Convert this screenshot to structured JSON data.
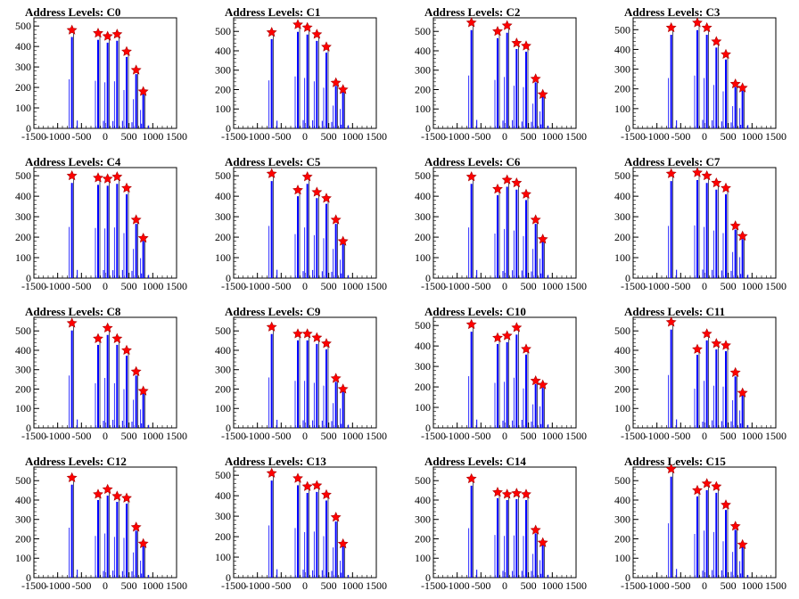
{
  "chart_data": [
    {
      "type": "bar",
      "title": "Address Levels: C0",
      "xlim": [
        -1500,
        1500
      ],
      "ylim": [
        0,
        540
      ],
      "xticks": [
        -1500,
        -1000,
        -500,
        0,
        500,
        1000,
        1500
      ],
      "yticks": [
        0,
        100,
        200,
        300,
        400,
        500
      ],
      "peaks": [
        {
          "x": -700,
          "y": 480
        },
        {
          "x": -150,
          "y": 465
        },
        {
          "x": 50,
          "y": 450
        },
        {
          "x": 250,
          "y": 460
        },
        {
          "x": 450,
          "y": 375
        },
        {
          "x": 650,
          "y": 285
        },
        {
          "x": 800,
          "y": 180
        }
      ]
    },
    {
      "type": "bar",
      "title": "Address Levels: C1",
      "xlim": [
        -1500,
        1500
      ],
      "ylim": [
        0,
        570
      ],
      "xticks": [
        -1500,
        -1000,
        -500,
        0,
        500,
        1000,
        1500
      ],
      "yticks": [
        0,
        100,
        200,
        300,
        400,
        500
      ],
      "peaks": [
        {
          "x": -700,
          "y": 495
        },
        {
          "x": -150,
          "y": 535
        },
        {
          "x": 50,
          "y": 520
        },
        {
          "x": 250,
          "y": 485
        },
        {
          "x": 450,
          "y": 420
        },
        {
          "x": 650,
          "y": 235
        },
        {
          "x": 800,
          "y": 200
        }
      ]
    },
    {
      "type": "bar",
      "title": "Address Levels: C2",
      "xlim": [
        -1500,
        1500
      ],
      "ylim": [
        0,
        570
      ],
      "xticks": [
        -1500,
        -1000,
        -500,
        0,
        500,
        1000,
        1500
      ],
      "yticks": [
        0,
        100,
        200,
        300,
        400,
        500
      ],
      "peaks": [
        {
          "x": -700,
          "y": 545
        },
        {
          "x": -150,
          "y": 500
        },
        {
          "x": 50,
          "y": 530
        },
        {
          "x": 250,
          "y": 440
        },
        {
          "x": 450,
          "y": 425
        },
        {
          "x": 650,
          "y": 255
        },
        {
          "x": 800,
          "y": 175
        }
      ]
    },
    {
      "type": "bar",
      "title": "Address Levels: C3",
      "xlim": [
        -1500,
        1500
      ],
      "ylim": [
        0,
        560
      ],
      "xticks": [
        -1500,
        -1000,
        -500,
        0,
        500,
        1000,
        1500
      ],
      "yticks": [
        0,
        100,
        200,
        300,
        400,
        500
      ],
      "peaks": [
        {
          "x": -700,
          "y": 510
        },
        {
          "x": -150,
          "y": 535
        },
        {
          "x": 50,
          "y": 510
        },
        {
          "x": 250,
          "y": 440
        },
        {
          "x": 450,
          "y": 375
        },
        {
          "x": 650,
          "y": 225
        },
        {
          "x": 800,
          "y": 205
        }
      ]
    },
    {
      "type": "bar",
      "title": "Address Levels: C4",
      "xlim": [
        -1500,
        1500
      ],
      "ylim": [
        0,
        540
      ],
      "xticks": [
        -1500,
        -1000,
        -500,
        0,
        500,
        1000,
        1500
      ],
      "yticks": [
        0,
        100,
        200,
        300,
        400,
        500
      ],
      "peaks": [
        {
          "x": -700,
          "y": 500
        },
        {
          "x": -150,
          "y": 490
        },
        {
          "x": 50,
          "y": 485
        },
        {
          "x": 250,
          "y": 495
        },
        {
          "x": 450,
          "y": 440
        },
        {
          "x": 650,
          "y": 285
        },
        {
          "x": 800,
          "y": 195
        }
      ]
    },
    {
      "type": "bar",
      "title": "Address Levels: C5",
      "xlim": [
        -1500,
        1500
      ],
      "ylim": [
        0,
        540
      ],
      "xticks": [
        -1500,
        -1000,
        -500,
        0,
        500,
        1000,
        1500
      ],
      "yticks": [
        0,
        100,
        200,
        300,
        400,
        500
      ],
      "peaks": [
        {
          "x": -700,
          "y": 510
        },
        {
          "x": -150,
          "y": 430
        },
        {
          "x": 50,
          "y": 495
        },
        {
          "x": 250,
          "y": 420
        },
        {
          "x": 450,
          "y": 390
        },
        {
          "x": 650,
          "y": 285
        },
        {
          "x": 800,
          "y": 180
        }
      ]
    },
    {
      "type": "bar",
      "title": "Address Levels: C6",
      "xlim": [
        -1500,
        1500
      ],
      "ylim": [
        0,
        540
      ],
      "xticks": [
        -1500,
        -1000,
        -500,
        0,
        500,
        1000,
        1500
      ],
      "yticks": [
        0,
        100,
        200,
        300,
        400,
        500
      ],
      "peaks": [
        {
          "x": -700,
          "y": 495
        },
        {
          "x": -150,
          "y": 435
        },
        {
          "x": 50,
          "y": 480
        },
        {
          "x": 250,
          "y": 465
        },
        {
          "x": 450,
          "y": 410
        },
        {
          "x": 650,
          "y": 285
        },
        {
          "x": 800,
          "y": 190
        }
      ]
    },
    {
      "type": "bar",
      "title": "Address Levels: C7",
      "xlim": [
        -1500,
        1500
      ],
      "ylim": [
        0,
        540
      ],
      "xticks": [
        -1500,
        -1000,
        -500,
        0,
        500,
        1000,
        1500
      ],
      "yticks": [
        0,
        100,
        200,
        300,
        400,
        500
      ],
      "peaks": [
        {
          "x": -700,
          "y": 510
        },
        {
          "x": -150,
          "y": 515
        },
        {
          "x": 50,
          "y": 500
        },
        {
          "x": 250,
          "y": 465
        },
        {
          "x": 450,
          "y": 440
        },
        {
          "x": 650,
          "y": 255
        },
        {
          "x": 800,
          "y": 205
        }
      ]
    },
    {
      "type": "bar",
      "title": "Address Levels: C8",
      "xlim": [
        -1500,
        1500
      ],
      "ylim": [
        0,
        570
      ],
      "xticks": [
        -1500,
        -1000,
        -500,
        0,
        500,
        1000,
        1500
      ],
      "yticks": [
        0,
        100,
        200,
        300,
        400,
        500
      ],
      "peaks": [
        {
          "x": -700,
          "y": 540
        },
        {
          "x": -150,
          "y": 460
        },
        {
          "x": 50,
          "y": 515
        },
        {
          "x": 250,
          "y": 460
        },
        {
          "x": 450,
          "y": 400
        },
        {
          "x": 650,
          "y": 290
        },
        {
          "x": 800,
          "y": 190
        }
      ]
    },
    {
      "type": "bar",
      "title": "Address Levels: C9",
      "xlim": [
        -1500,
        1500
      ],
      "ylim": [
        0,
        570
      ],
      "xticks": [
        -1500,
        -1000,
        -500,
        0,
        500,
        1000,
        1500
      ],
      "yticks": [
        0,
        100,
        200,
        300,
        400,
        500
      ],
      "peaks": [
        {
          "x": -700,
          "y": 520
        },
        {
          "x": -150,
          "y": 485
        },
        {
          "x": 50,
          "y": 485
        },
        {
          "x": 250,
          "y": 465
        },
        {
          "x": 450,
          "y": 435
        },
        {
          "x": 650,
          "y": 255
        },
        {
          "x": 800,
          "y": 200
        }
      ]
    },
    {
      "type": "bar",
      "title": "Address Levels: C10",
      "xlim": [
        -1500,
        1500
      ],
      "ylim": [
        0,
        540
      ],
      "xticks": [
        -1500,
        -1000,
        -500,
        0,
        500,
        1000,
        1500
      ],
      "yticks": [
        0,
        100,
        200,
        300,
        400,
        500
      ],
      "peaks": [
        {
          "x": -700,
          "y": 505
        },
        {
          "x": -150,
          "y": 440
        },
        {
          "x": 50,
          "y": 450
        },
        {
          "x": 250,
          "y": 490
        },
        {
          "x": 450,
          "y": 385
        },
        {
          "x": 650,
          "y": 230
        },
        {
          "x": 800,
          "y": 210
        }
      ]
    },
    {
      "type": "bar",
      "title": "Address Levels: C11",
      "xlim": [
        -1500,
        1500
      ],
      "ylim": [
        0,
        570
      ],
      "xticks": [
        -1500,
        -1000,
        -500,
        0,
        500,
        1000,
        1500
      ],
      "yticks": [
        0,
        100,
        200,
        300,
        400,
        500
      ],
      "peaks": [
        {
          "x": -700,
          "y": 545
        },
        {
          "x": -150,
          "y": 405
        },
        {
          "x": 50,
          "y": 485
        },
        {
          "x": 250,
          "y": 435
        },
        {
          "x": 450,
          "y": 425
        },
        {
          "x": 650,
          "y": 285
        },
        {
          "x": 800,
          "y": 180
        }
      ]
    },
    {
      "type": "bar",
      "title": "Address Levels: C12",
      "xlim": [
        -1500,
        1500
      ],
      "ylim": [
        0,
        570
      ],
      "xticks": [
        -1500,
        -1000,
        -500,
        0,
        500,
        1000,
        1500
      ],
      "yticks": [
        0,
        100,
        200,
        300,
        400,
        500
      ],
      "peaks": [
        {
          "x": -700,
          "y": 515
        },
        {
          "x": -150,
          "y": 430
        },
        {
          "x": 50,
          "y": 455
        },
        {
          "x": 250,
          "y": 420
        },
        {
          "x": 450,
          "y": 410
        },
        {
          "x": 650,
          "y": 260
        },
        {
          "x": 800,
          "y": 175
        }
      ]
    },
    {
      "type": "bar",
      "title": "Address Levels: C13",
      "xlim": [
        -1500,
        1500
      ],
      "ylim": [
        0,
        540
      ],
      "xticks": [
        -1500,
        -1000,
        -500,
        0,
        500,
        1000,
        1500
      ],
      "yticks": [
        0,
        100,
        200,
        300,
        400,
        500
      ],
      "peaks": [
        {
          "x": -700,
          "y": 510
        },
        {
          "x": -150,
          "y": 485
        },
        {
          "x": 50,
          "y": 445
        },
        {
          "x": 250,
          "y": 450
        },
        {
          "x": 450,
          "y": 405
        },
        {
          "x": 650,
          "y": 295
        },
        {
          "x": 800,
          "y": 165
        }
      ]
    },
    {
      "type": "bar",
      "title": "Address Levels: C14",
      "xlim": [
        -1500,
        1500
      ],
      "ylim": [
        0,
        570
      ],
      "xticks": [
        -1500,
        -1000,
        -500,
        0,
        500,
        1000,
        1500
      ],
      "yticks": [
        0,
        100,
        200,
        300,
        400,
        500
      ],
      "peaks": [
        {
          "x": -700,
          "y": 510
        },
        {
          "x": -150,
          "y": 440
        },
        {
          "x": 50,
          "y": 430
        },
        {
          "x": 250,
          "y": 435
        },
        {
          "x": 450,
          "y": 430
        },
        {
          "x": 650,
          "y": 245
        },
        {
          "x": 800,
          "y": 180
        }
      ]
    },
    {
      "type": "bar",
      "title": "Address Levels: C15",
      "xlim": [
        -1500,
        1500
      ],
      "ylim": [
        0,
        570
      ],
      "xticks": [
        -1500,
        -1000,
        -500,
        0,
        500,
        1000,
        1500
      ],
      "yticks": [
        0,
        100,
        200,
        300,
        400,
        500
      ],
      "peaks": [
        {
          "x": -700,
          "y": 560
        },
        {
          "x": -150,
          "y": 450
        },
        {
          "x": 50,
          "y": 485
        },
        {
          "x": 250,
          "y": 470
        },
        {
          "x": 450,
          "y": 375
        },
        {
          "x": 650,
          "y": 265
        },
        {
          "x": 800,
          "y": 170
        }
      ]
    }
  ],
  "style": {
    "bar_color": "#0000ff",
    "marker_color": "#ff0000",
    "marker_edge": "#aa0000"
  }
}
